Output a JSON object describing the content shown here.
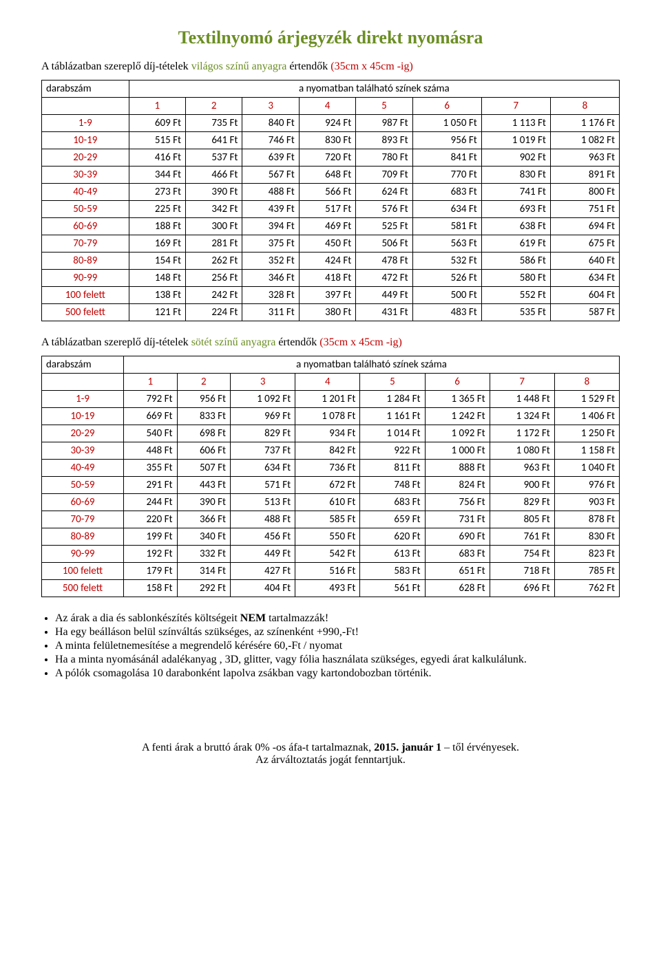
{
  "title_text": "Textilnyomó árjegyzék direkt nyomásra",
  "title_color": "#6b8e23",
  "intro1": {
    "prefix": "A táblázatban szereplő díj-tételek ",
    "highlight": "világos színű anyagra",
    "highlight_color": "#6b8e23",
    "middle": " értendők ",
    "size_note": "(35cm x 45cm -ig)",
    "size_color": "#c00000"
  },
  "intro2": {
    "prefix": "A táblázatban szereplő díj-tételek ",
    "highlight": "sötét színű anyagra",
    "highlight_color": "#6b8e23",
    "middle": " értendők ",
    "size_note": "(35cm x 45cm -ig)",
    "size_color": "#c00000"
  },
  "table_header_corner": "darabszám",
  "table_header_span": "a nyomatban található színek száma",
  "col_numbers": [
    "1",
    "2",
    "3",
    "4",
    "5",
    "6",
    "7",
    "8"
  ],
  "range_color": "#c00000",
  "colnum_color": "#c00000",
  "table1_rows": [
    {
      "range": "1-9",
      "v": [
        "609 Ft",
        "735 Ft",
        "840 Ft",
        "924 Ft",
        "987 Ft",
        "1 050 Ft",
        "1 113 Ft",
        "1 176 Ft"
      ]
    },
    {
      "range": "10-19",
      "v": [
        "515 Ft",
        "641 Ft",
        "746 Ft",
        "830 Ft",
        "893 Ft",
        "956 Ft",
        "1 019 Ft",
        "1 082 Ft"
      ]
    },
    {
      "range": "20-29",
      "v": [
        "416 Ft",
        "537 Ft",
        "639 Ft",
        "720 Ft",
        "780 Ft",
        "841 Ft",
        "902 Ft",
        "963 Ft"
      ]
    },
    {
      "range": "30-39",
      "v": [
        "344 Ft",
        "466 Ft",
        "567 Ft",
        "648 Ft",
        "709 Ft",
        "770 Ft",
        "830 Ft",
        "891 Ft"
      ]
    },
    {
      "range": "40-49",
      "v": [
        "273 Ft",
        "390 Ft",
        "488 Ft",
        "566 Ft",
        "624 Ft",
        "683 Ft",
        "741 Ft",
        "800 Ft"
      ]
    },
    {
      "range": "50-59",
      "v": [
        "225 Ft",
        "342 Ft",
        "439 Ft",
        "517 Ft",
        "576 Ft",
        "634 Ft",
        "693 Ft",
        "751 Ft"
      ]
    },
    {
      "range": "60-69",
      "v": [
        "188 Ft",
        "300 Ft",
        "394 Ft",
        "469 Ft",
        "525 Ft",
        "581 Ft",
        "638 Ft",
        "694 Ft"
      ]
    },
    {
      "range": "70-79",
      "v": [
        "169 Ft",
        "281 Ft",
        "375 Ft",
        "450 Ft",
        "506 Ft",
        "563 Ft",
        "619 Ft",
        "675 Ft"
      ]
    },
    {
      "range": "80-89",
      "v": [
        "154 Ft",
        "262 Ft",
        "352 Ft",
        "424 Ft",
        "478 Ft",
        "532 Ft",
        "586 Ft",
        "640 Ft"
      ]
    },
    {
      "range": "90-99",
      "v": [
        "148 Ft",
        "256 Ft",
        "346 Ft",
        "418 Ft",
        "472 Ft",
        "526 Ft",
        "580 Ft",
        "634 Ft"
      ]
    },
    {
      "range": "100 felett",
      "v": [
        "138 Ft",
        "242 Ft",
        "328 Ft",
        "397 Ft",
        "449 Ft",
        "500 Ft",
        "552 Ft",
        "604 Ft"
      ]
    },
    {
      "range": "500 felett",
      "v": [
        "121 Ft",
        "224 Ft",
        "311 Ft",
        "380 Ft",
        "431 Ft",
        "483 Ft",
        "535 Ft",
        "587 Ft"
      ]
    }
  ],
  "table2_rows": [
    {
      "range": "1-9",
      "v": [
        "792 Ft",
        "956 Ft",
        "1 092 Ft",
        "1 201 Ft",
        "1 284 Ft",
        "1 365 Ft",
        "1 448 Ft",
        "1 529 Ft"
      ]
    },
    {
      "range": "10-19",
      "v": [
        "669 Ft",
        "833 Ft",
        "969 Ft",
        "1 078 Ft",
        "1 161 Ft",
        "1 242 Ft",
        "1 324 Ft",
        "1 406 Ft"
      ]
    },
    {
      "range": "20-29",
      "v": [
        "540 Ft",
        "698 Ft",
        "829 Ft",
        "934 Ft",
        "1 014 Ft",
        "1 092 Ft",
        "1 172 Ft",
        "1 250 Ft"
      ]
    },
    {
      "range": "30-39",
      "v": [
        "448 Ft",
        "606 Ft",
        "737 Ft",
        "842 Ft",
        "922 Ft",
        "1 000 Ft",
        "1 080 Ft",
        "1 158 Ft"
      ]
    },
    {
      "range": "40-49",
      "v": [
        "355 Ft",
        "507 Ft",
        "634 Ft",
        "736 Ft",
        "811 Ft",
        "888 Ft",
        "963 Ft",
        "1 040 Ft"
      ]
    },
    {
      "range": "50-59",
      "v": [
        "291 Ft",
        "443 Ft",
        "571 Ft",
        "672 Ft",
        "748 Ft",
        "824 Ft",
        "900 Ft",
        "976 Ft"
      ]
    },
    {
      "range": "60-69",
      "v": [
        "244 Ft",
        "390 Ft",
        "513 Ft",
        "610 Ft",
        "683 Ft",
        "756 Ft",
        "829 Ft",
        "903 Ft"
      ]
    },
    {
      "range": "70-79",
      "v": [
        "220 Ft",
        "366 Ft",
        "488 Ft",
        "585 Ft",
        "659 Ft",
        "731 Ft",
        "805 Ft",
        "878 Ft"
      ]
    },
    {
      "range": "80-89",
      "v": [
        "199 Ft",
        "340 Ft",
        "456 Ft",
        "550 Ft",
        "620 Ft",
        "690 Ft",
        "761 Ft",
        "830 Ft"
      ]
    },
    {
      "range": "90-99",
      "v": [
        "192 Ft",
        "332 Ft",
        "449 Ft",
        "542 Ft",
        "613 Ft",
        "683 Ft",
        "754 Ft",
        "823 Ft"
      ]
    },
    {
      "range": "100 felett",
      "v": [
        "179 Ft",
        "314 Ft",
        "427 Ft",
        "516 Ft",
        "583 Ft",
        "651 Ft",
        "718 Ft",
        "785 Ft"
      ]
    },
    {
      "range": "500 felett",
      "v": [
        "158 Ft",
        "292 Ft",
        "404 Ft",
        "493 Ft",
        "561 Ft",
        "628 Ft",
        "696 Ft",
        "762 Ft"
      ]
    }
  ],
  "notes": [
    {
      "pre": "Az árak a dia és sablonkészítés költségeit ",
      "bold": "NEM",
      "post": " tartalmazzák!"
    },
    {
      "pre": "Ha egy beálláson belül színváltás szükséges, az színenként +990,-Ft!",
      "bold": "",
      "post": ""
    },
    {
      "pre": "A minta felületnemesítése a megrendelő kérésére 60,-Ft / nyomat",
      "bold": "",
      "post": ""
    },
    {
      "pre": "Ha a minta nyomásánál adalékanyag , 3D, glitter, vagy fólia használata szükséges, egyedi árat kalkulálunk.",
      "bold": "",
      "post": ""
    },
    {
      "pre": "A pólók csomagolása 10 darabonként lapolva zsákban vagy kartondobozban történik.",
      "bold": "",
      "post": ""
    }
  ],
  "footer": {
    "line1_pre": "A fenti árak a bruttó árak 0% -os áfa-t tartalmaznak, ",
    "line1_bold": "2015. január 1",
    "line1_post": " – től érvényesek.",
    "line2": "Az árváltoztatás jogát fenntartjuk."
  }
}
